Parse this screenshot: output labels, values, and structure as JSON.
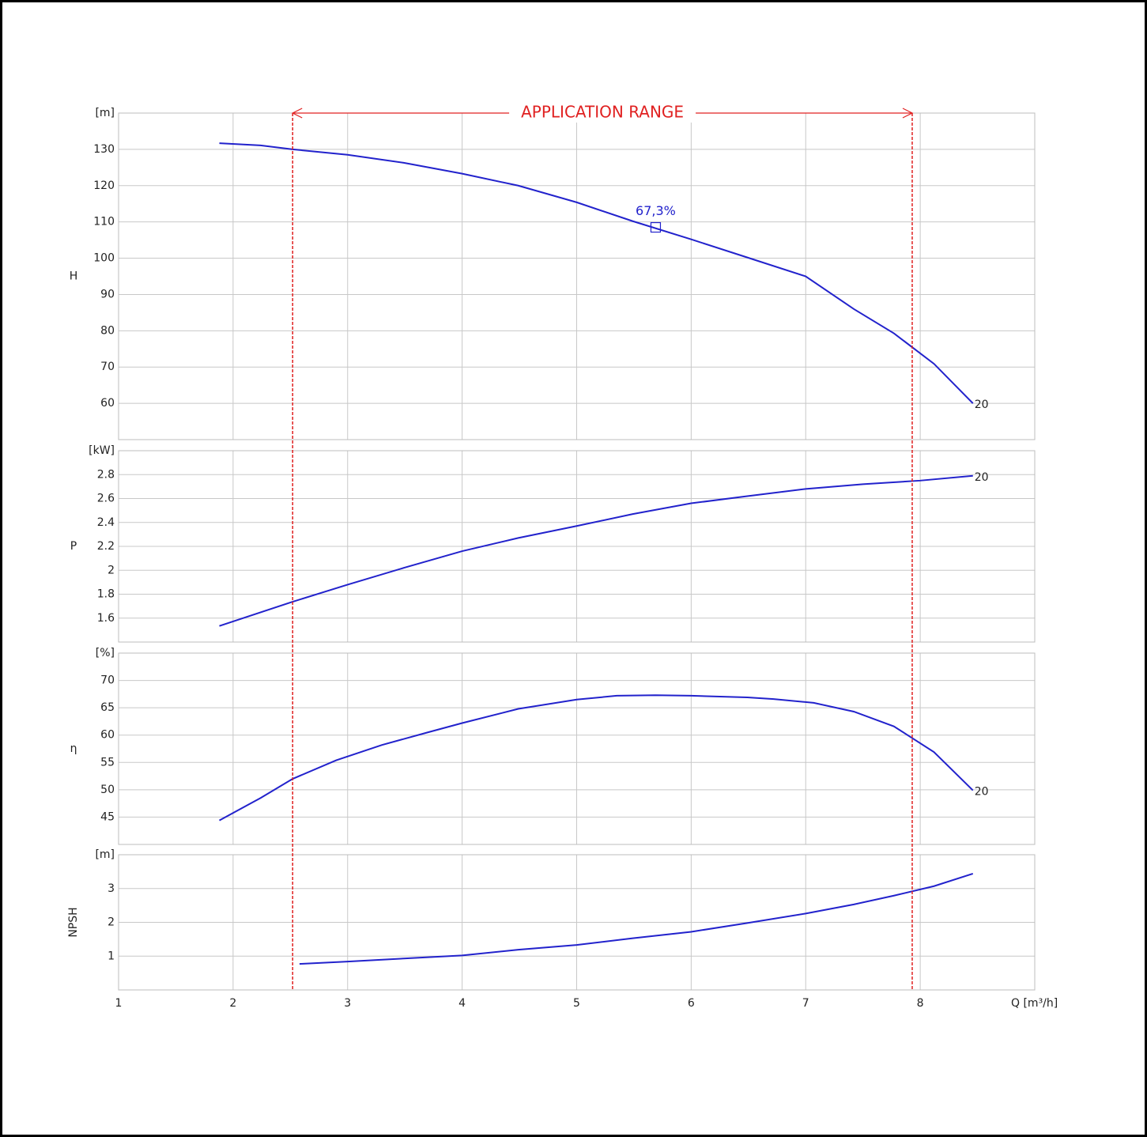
{
  "application_range": {
    "label": "APPLICATION RANGE",
    "range": [
      2.52,
      7.93
    ],
    "color": "#e02020"
  },
  "chart_data": [
    {
      "type": "line",
      "ylabel": "H",
      "yunit": "[m]",
      "xlim": [
        1,
        9
      ],
      "ylim": [
        50,
        140
      ],
      "yticks": [
        60,
        70,
        80,
        90,
        100,
        110,
        120,
        130
      ],
      "grid": true,
      "x": [
        1.88,
        2.24,
        2.52,
        3.0,
        3.49,
        4.0,
        4.49,
        5.0,
        5.49,
        6.0,
        6.49,
        7.0,
        7.42,
        7.77,
        8.12,
        8.46
      ],
      "series": [
        {
          "name": "20",
          "color": "#2222cc",
          "values": [
            131.7,
            131.1,
            130,
            128.5,
            126.3,
            123.3,
            120,
            115.4,
            110.2,
            105.2,
            100.2,
            95,
            86,
            79.3,
            70.9,
            60
          ]
        }
      ],
      "points": [
        {
          "x": 5.69,
          "y": 108.5,
          "label": "67,3%"
        }
      ]
    },
    {
      "type": "line",
      "ylabel": "P",
      "yunit": "[kW]",
      "xlim": [
        1,
        9
      ],
      "ylim": [
        1.4,
        3.0
      ],
      "yticks": [
        1.6,
        1.8,
        2,
        2.2,
        2.4,
        2.6,
        2.8
      ],
      "grid": true,
      "x": [
        1.88,
        2.52,
        3.0,
        3.49,
        4.0,
        4.49,
        5.0,
        5.49,
        6.0,
        6.49,
        7.0,
        7.5,
        8.0,
        8.46
      ],
      "series": [
        {
          "name": "20",
          "color": "#2222cc",
          "values": [
            1.534,
            1.737,
            1.88,
            2.02,
            2.16,
            2.27,
            2.37,
            2.47,
            2.56,
            2.62,
            2.68,
            2.72,
            2.75,
            2.79
          ]
        }
      ]
    },
    {
      "type": "line",
      "ylabel": "η",
      "yunit": "[%]",
      "xlim": [
        1,
        9
      ],
      "ylim": [
        40,
        75
      ],
      "yticks": [
        45,
        50,
        55,
        60,
        65,
        70
      ],
      "grid": true,
      "x": [
        1.88,
        2.24,
        2.52,
        2.9,
        3.3,
        3.7,
        4.0,
        4.49,
        5.0,
        5.35,
        5.69,
        6.0,
        6.49,
        6.72,
        7.07,
        7.42,
        7.77,
        8.12,
        8.46
      ],
      "series": [
        {
          "name": "20",
          "color": "#2222cc",
          "values": [
            44.4,
            48.5,
            52,
            55.4,
            58.2,
            60.5,
            62.2,
            64.8,
            66.5,
            67.2,
            67.3,
            67.2,
            66.9,
            66.6,
            65.9,
            64.3,
            61.6,
            56.9,
            49.9
          ]
        }
      ]
    },
    {
      "type": "line",
      "ylabel": "NPSH",
      "yunit": "[m]",
      "xlabel": "Q [m³/h]",
      "xlim": [
        1,
        9
      ],
      "ylim": [
        0,
        4
      ],
      "yticks": [
        1,
        2,
        3
      ],
      "xticks": [
        1,
        2,
        3,
        4,
        5,
        6,
        7,
        8
      ],
      "grid": true,
      "x": [
        2.58,
        3.0,
        3.49,
        4.0,
        4.49,
        5.0,
        5.49,
        6.0,
        6.49,
        7.0,
        7.42,
        7.77,
        8.12,
        8.46
      ],
      "series": [
        {
          "color": "#2222cc",
          "values": [
            0.77,
            0.84,
            0.93,
            1.02,
            1.19,
            1.33,
            1.53,
            1.72,
            1.98,
            2.26,
            2.53,
            2.79,
            3.07,
            3.44
          ]
        }
      ]
    }
  ]
}
